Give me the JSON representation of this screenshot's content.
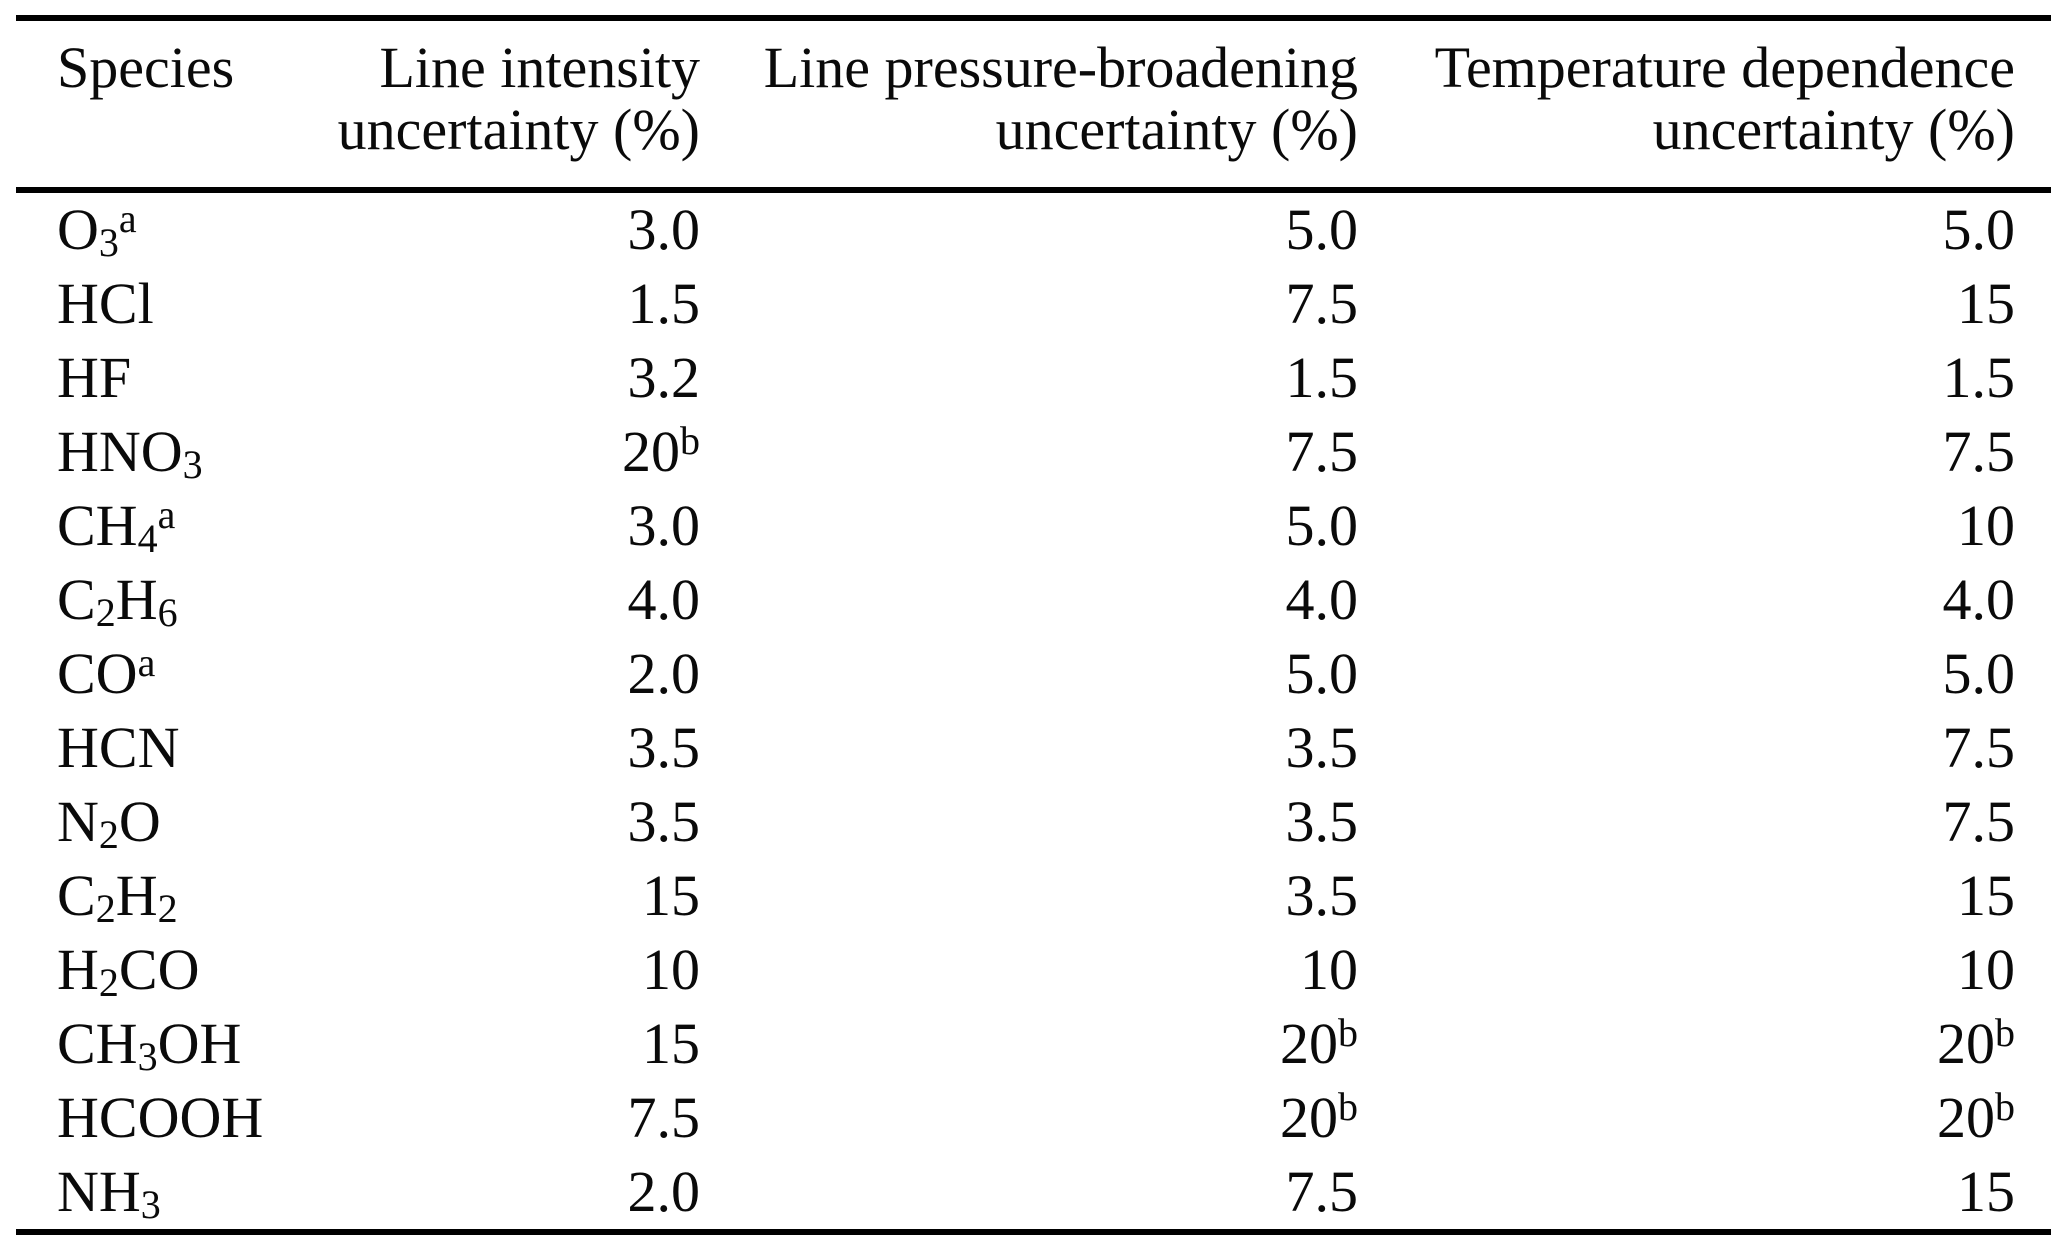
{
  "page": {
    "background": "#ffffff",
    "text_color": "#0a0a0a",
    "rule_color": "#000000"
  },
  "table": {
    "columns": [
      {
        "id": "species",
        "line1": "Species",
        "line2": ""
      },
      {
        "id": "line-intensity",
        "line1": "Line intensity",
        "line2": "uncertainty (%)"
      },
      {
        "id": "pressure-broadening",
        "line1": "Line pressure-broadening",
        "line2": "uncertainty (%)"
      },
      {
        "id": "temp-dependence",
        "line1": "Temperature dependence",
        "line2": "uncertainty (%)"
      }
    ],
    "footnote_markers": [
      "a",
      "b"
    ],
    "rows": [
      {
        "species": [
          [
            "O"
          ],
          [
            "3",
            "sub"
          ],
          [
            "a",
            "sup"
          ]
        ],
        "values": [
          "3.0",
          "5.0",
          "5.0"
        ]
      },
      {
        "species": [
          [
            "HCl"
          ]
        ],
        "values": [
          "1.5",
          "7.5",
          "15"
        ]
      },
      {
        "species": [
          [
            "HF"
          ]
        ],
        "values": [
          "3.2",
          "1.5",
          "1.5"
        ]
      },
      {
        "species": [
          [
            "HNO"
          ],
          [
            "3",
            "sub"
          ]
        ],
        "values": [
          "20^b",
          "7.5",
          "7.5"
        ]
      },
      {
        "species": [
          [
            "CH"
          ],
          [
            "4",
            "sub"
          ],
          [
            "a",
            "sup"
          ]
        ],
        "values": [
          "3.0",
          "5.0",
          "10"
        ]
      },
      {
        "species": [
          [
            "C"
          ],
          [
            "2",
            "sub"
          ],
          [
            "H"
          ],
          [
            "6",
            "sub"
          ]
        ],
        "values": [
          "4.0",
          "4.0",
          "4.0"
        ]
      },
      {
        "species": [
          [
            "CO"
          ],
          [
            "a",
            "sup"
          ]
        ],
        "values": [
          "2.0",
          "5.0",
          "5.0"
        ]
      },
      {
        "species": [
          [
            "HCN"
          ]
        ],
        "values": [
          "3.5",
          "3.5",
          "7.5"
        ]
      },
      {
        "species": [
          [
            "N"
          ],
          [
            "2",
            "sub"
          ],
          [
            "O"
          ]
        ],
        "values": [
          "3.5",
          "3.5",
          "7.5"
        ]
      },
      {
        "species": [
          [
            "C"
          ],
          [
            "2",
            "sub"
          ],
          [
            "H"
          ],
          [
            "2",
            "sub"
          ]
        ],
        "values": [
          "15",
          "3.5",
          "15"
        ]
      },
      {
        "species": [
          [
            "H"
          ],
          [
            "2",
            "sub"
          ],
          [
            "CO"
          ]
        ],
        "values": [
          "10",
          "10",
          "10"
        ]
      },
      {
        "species": [
          [
            "CH"
          ],
          [
            "3",
            "sub"
          ],
          [
            "OH"
          ]
        ],
        "values": [
          "15",
          "20^b",
          "20^b"
        ]
      },
      {
        "species": [
          [
            "HCOOH"
          ]
        ],
        "values": [
          "7.5",
          "20^b",
          "20^b"
        ]
      },
      {
        "species": [
          [
            "NH"
          ],
          [
            "3",
            "sub"
          ]
        ],
        "values": [
          "2.0",
          "7.5",
          "15"
        ]
      }
    ]
  },
  "chart_data": {
    "type": "table",
    "columns": [
      "Species",
      "Line intensity uncertainty (%)",
      "Line pressure-broadening uncertainty (%)",
      "Temperature dependence uncertainty (%)"
    ],
    "rows": [
      [
        "O3 (a)",
        "3.0",
        "5.0",
        "5.0"
      ],
      [
        "HCl",
        "1.5",
        "7.5",
        "15"
      ],
      [
        "HF",
        "3.2",
        "1.5",
        "1.5"
      ],
      [
        "HNO3",
        "20 (b)",
        "7.5",
        "7.5"
      ],
      [
        "CH4 (a)",
        "3.0",
        "5.0",
        "10"
      ],
      [
        "C2H6",
        "4.0",
        "4.0",
        "4.0"
      ],
      [
        "CO (a)",
        "2.0",
        "5.0",
        "5.0"
      ],
      [
        "HCN",
        "3.5",
        "3.5",
        "7.5"
      ],
      [
        "N2O",
        "3.5",
        "3.5",
        "7.5"
      ],
      [
        "C2H2",
        "15",
        "3.5",
        "15"
      ],
      [
        "H2CO",
        "10",
        "10",
        "10"
      ],
      [
        "CH3OH",
        "15",
        "20 (b)",
        "20 (b)"
      ],
      [
        "HCOOH",
        "7.5",
        "20 (b)",
        "20 (b)"
      ],
      [
        "NH3",
        "2.0",
        "7.5",
        "15"
      ]
    ]
  }
}
